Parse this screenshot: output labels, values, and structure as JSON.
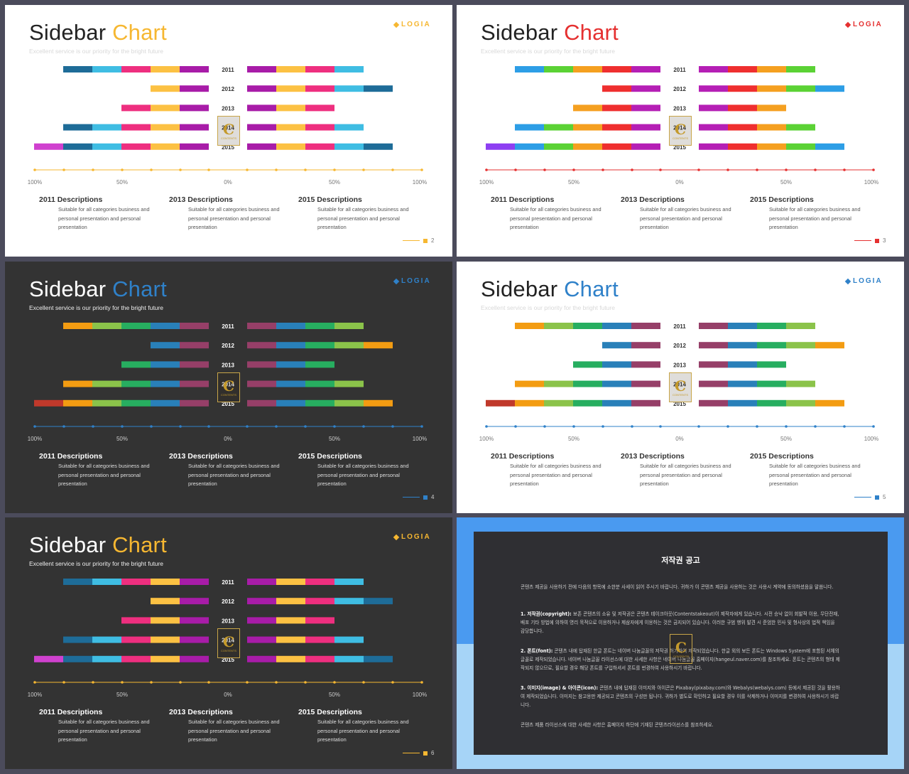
{
  "slides": [
    {
      "theme": "light",
      "title_word1": "Sidebar",
      "title_word2": "Chart",
      "subtitle": "Excellent service is our priority for the bright future",
      "logo": "LOGIA",
      "accent": "#f6b731",
      "page": "2",
      "left_palette": [
        "#d041cf",
        "#1e6c98",
        "#3fbde3",
        "#ee2f7f",
        "#fcc143",
        "#a81ca8"
      ],
      "right_palette": [
        "#a81ca8",
        "#fcc143",
        "#ee2f7f",
        "#3fbde3",
        "#1e6c98"
      ]
    },
    {
      "theme": "light",
      "title_word1": "Sidebar",
      "title_word2": "Chart",
      "subtitle": "Excellent service is our priority for the bright future",
      "logo": "LOGIA",
      "accent": "#e53030",
      "page": "3",
      "left_palette": [
        "#8e3ff2",
        "#2d9ee6",
        "#5bd235",
        "#f5a020",
        "#ef2f2f",
        "#b51fb5"
      ],
      "right_palette": [
        "#b51fb5",
        "#ef2f2f",
        "#f5a020",
        "#5bd235",
        "#2d9ee6"
      ]
    },
    {
      "theme": "dark",
      "title_word1": "Sidebar",
      "title_word2": "Chart",
      "subtitle": "Excellent service is our priority for the bright future",
      "logo": "LOGIA",
      "accent": "#2f81c9",
      "page": "4",
      "left_palette": [
        "#c0392b",
        "#f39c12",
        "#8bc34a",
        "#27ae60",
        "#2980b9",
        "#963f68"
      ],
      "right_palette": [
        "#963f68",
        "#2980b9",
        "#27ae60",
        "#8bc34a",
        "#f39c12"
      ]
    },
    {
      "theme": "light",
      "title_word1": "Sidebar",
      "title_word2": "Chart",
      "subtitle": "Excellent service is our priority for the bright future",
      "logo": "LOGIA",
      "accent": "#2f81c9",
      "page": "5",
      "left_palette": [
        "#c0392b",
        "#f39c12",
        "#8bc34a",
        "#27ae60",
        "#2980b9",
        "#963f68"
      ],
      "right_palette": [
        "#963f68",
        "#2980b9",
        "#27ae60",
        "#8bc34a",
        "#f39c12"
      ]
    },
    {
      "theme": "dark",
      "title_word1": "Sidebar",
      "title_word2": "Chart",
      "subtitle": "Excellent service is our priority for the bright future",
      "logo": "LOGIA",
      "accent": "#f6b731",
      "page": "6",
      "left_palette": [
        "#d041cf",
        "#1e6c98",
        "#3fbde3",
        "#ee2f7f",
        "#fcc143",
        "#a81ca8"
      ],
      "right_palette": [
        "#a81ca8",
        "#fcc143",
        "#ee2f7f",
        "#3fbde3",
        "#1e6c98"
      ]
    }
  ],
  "chart_data": {
    "type": "bar",
    "categories": [
      "2011",
      "2012",
      "2013",
      "2014",
      "2015"
    ],
    "left_segments": [
      5,
      2,
      3,
      5,
      6
    ],
    "right_segments": [
      4,
      5,
      3,
      4,
      5
    ],
    "axis_labels": [
      "100%",
      "50%",
      "0%",
      "50%",
      "100%"
    ]
  },
  "descriptions": [
    {
      "heading": "2011 Descriptions",
      "body": "Suitable for all categories business and personal presentation and personal presentation"
    },
    {
      "heading": "2013 Descriptions",
      "body": "Suitable for all categories business and personal presentation and personal presentation"
    },
    {
      "heading": "2015 Descriptions",
      "body": "Suitable for all categories business and personal presentation and personal presentation"
    }
  ],
  "stamp": {
    "letter": "C",
    "text": "CONTENTS"
  },
  "notice": {
    "title": "저작권 공고",
    "intro": "콘텐츠 제공을 사용하기 전에 다음의 항목에 소한분 사세이 읽어 주시기 바랍니다. 귀하가 이 콘텐츠 제공을 사용하는 것은 사용시 계약에 동의하셨음을 말씀니다.",
    "p1_label": "1. 저작권(copyright):",
    "p1": "보존 콘텐츠의 소유 및 저작권은 콘텐츠 테이크아웃(Contentstakeout)이 제작자에게 있습니다. 시전 승낙 없이 회발적 이용, 무단전재, 배포 기타 방법에 의하여 영리 목적으로 이용하거나 제삼자에게 이용하는 것은 금지되어 있습니다. 이러한 규범 행위 발견 시 준엄한 민사 및 형사상의 법적 책임을 감당합니다.",
    "p2_label": "2. 폰트(font):",
    "p2": "콘텐츠 내에 탑재된 한글 폰트는 네이버 나눔글꼴의 저작권 허가하여 제작되었습니다. 한글 외의 보든 폰트는 Windows System에 포함된 서체의 글꼴로 제작되었습니다. 네이버 나눔글꼴 라이선스에 대한 사세한 사항은 네이버 나눔글꼴 홈페이지(hangeul.naver.com)를 참조하세요. 폰트는 콘텐츠의 형태 제작되지 않으므로, 필요할 경우 해당 폰트를 구입하셔서 폰트를 번경하여 사용하시기 바랍니다.",
    "p3_label": "3. 이미지(image) & 아이콘(icon):",
    "p3": "콘텐츠 내에 탑재된 이미지와 아이콘은 Pixabay(pixabay.com)와 Webalys(webalys.com) 등에서 제공된 것을 활용하여 제작되었습니다. 이미지는 참고용만 제공되고 콘텐츠의 구성만 됩니다. 귀하가 별도로 확인하고 필요할 경우 이를 삭제하거나 이미지를 변경하여 사용하시기 바랍니다.",
    "outro": "콘텐츠 제품 라이선스에 대한 사세한 사항은 홈페이지 하단에 기재된 콘텐츠라이선스를 참조하세요."
  }
}
